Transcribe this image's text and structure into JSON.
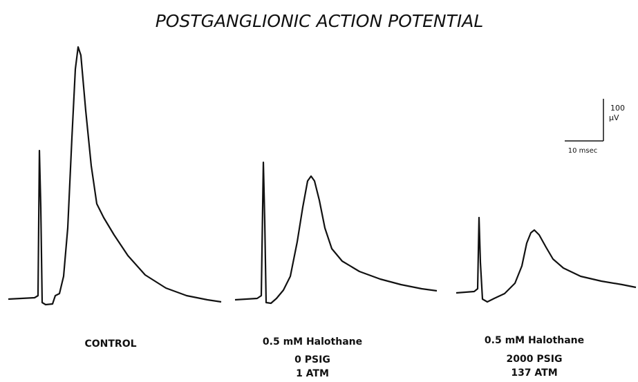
{
  "title": "POSTGANGLIONIC ACTION POTENTIAL",
  "scale_bar": {
    "amplitude": "100",
    "amplitude_unit": "µV",
    "time": "10 msec"
  },
  "panels": [
    {
      "lines": [
        "CONTROL"
      ]
    },
    {
      "lines": [
        "0.5 mM Halothane",
        "0 PSIG",
        "1 ATM"
      ]
    },
    {
      "lines": [
        "0.5 mM Halothane",
        "2000 PSIG",
        "137 ATM"
      ]
    }
  ]
}
